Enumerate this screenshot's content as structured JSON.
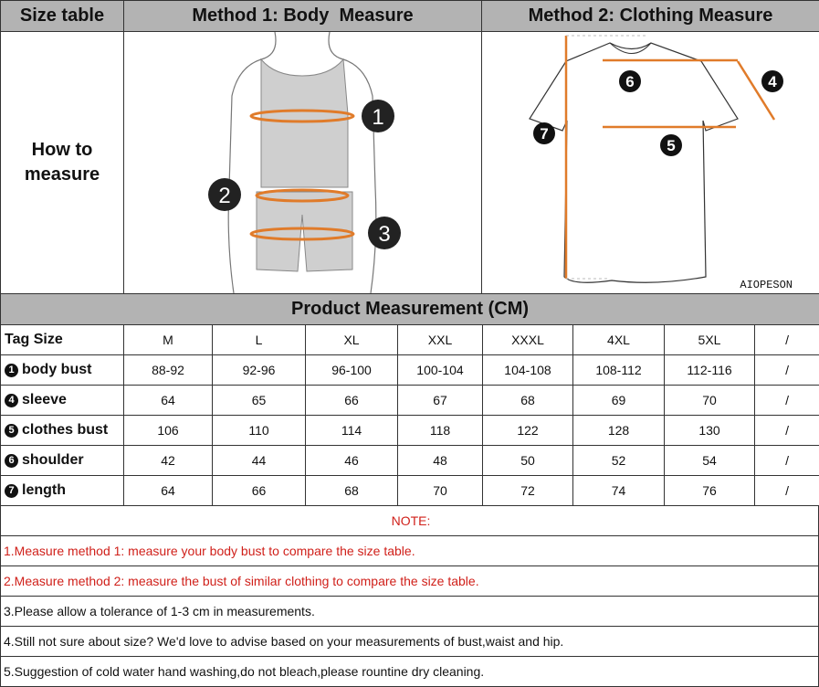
{
  "header": {
    "size_table": "Size table",
    "method1": "Method 1: Body  Measure",
    "method2": "Method 2: Clothing Measure"
  },
  "how_to_measure": "How to measure",
  "body_markers": [
    "1",
    "2",
    "3"
  ],
  "shirt_markers": [
    "6",
    "4",
    "7",
    "5"
  ],
  "brand": "AIOPESON",
  "colors": {
    "header_bg": "#b3b3b3",
    "measure_line": "#e07b2a",
    "note_red": "#d0201a"
  },
  "product_title": "Product Measurement (CM)",
  "table": {
    "header": {
      "label": "Tag Size",
      "sizes": [
        "M",
        "L",
        "XL",
        "XXL",
        "XXXL",
        "4XL",
        "5XL",
        "/"
      ]
    },
    "rows": [
      {
        "marker": "1",
        "label": "body bust",
        "values": [
          "88-92",
          "92-96",
          "96-100",
          "100-104",
          "104-108",
          "108-112",
          "112-116",
          "/"
        ]
      },
      {
        "marker": "4",
        "label": "sleeve",
        "values": [
          "64",
          "65",
          "66",
          "67",
          "68",
          "69",
          "70",
          "/"
        ]
      },
      {
        "marker": "5",
        "label": "clothes bust",
        "values": [
          "106",
          "110",
          "114",
          "118",
          "122",
          "128",
          "130",
          "/"
        ]
      },
      {
        "marker": "6",
        "label": "shoulder",
        "values": [
          "42",
          "44",
          "46",
          "48",
          "50",
          "52",
          "54",
          "/"
        ]
      },
      {
        "marker": "7",
        "label": "length",
        "values": [
          "64",
          "66",
          "68",
          "70",
          "72",
          "74",
          "76",
          "/"
        ]
      }
    ]
  },
  "notes": {
    "title": "NOTE:",
    "items": [
      "1.Measure method 1: measure your body bust to compare the size table.",
      "2.Measure method 2: measure the bust of similar clothing to compare the size table.",
      "3.Please allow a tolerance of 1-3 cm in measurements.",
      "4.Still not sure about size? We'd love to advise based on your measurements of bust,waist and hip.",
      "5.Suggestion of cold water hand washing,do not bleach,please rountine dry cleaning."
    ]
  }
}
